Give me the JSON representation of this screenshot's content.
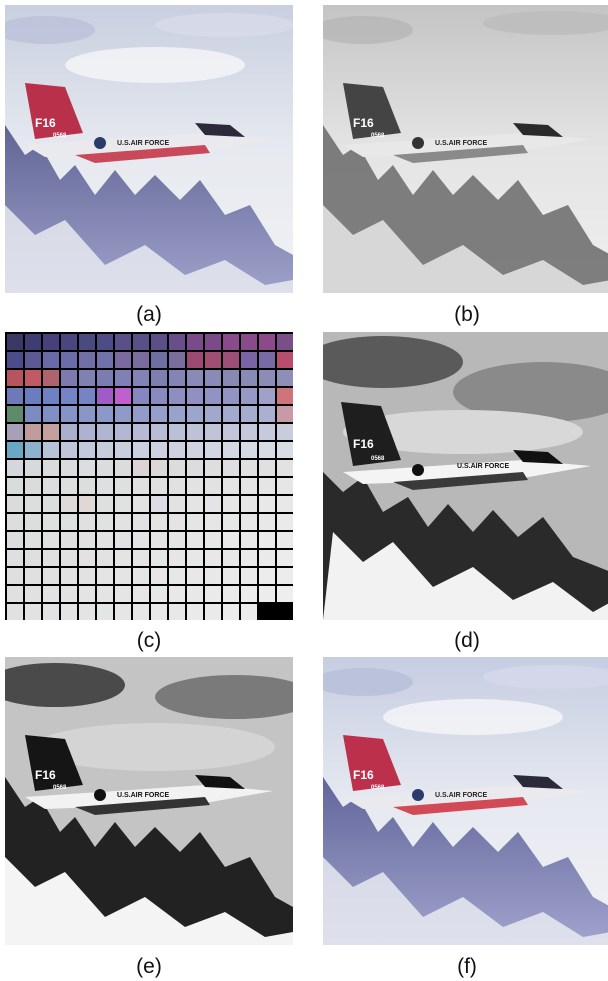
{
  "panels": [
    {
      "id": "a",
      "caption": "(a)",
      "tail_text": "F16",
      "serial_text": "0568",
      "fuselage_text": "U.S.AIR FORCE",
      "style": "color"
    },
    {
      "id": "b",
      "caption": "(b)",
      "tail_text": "F16",
      "serial_text": "0568",
      "fuselage_text": "U.S.AIR FORCE",
      "style": "gray"
    },
    {
      "id": "c",
      "caption": "(c)",
      "style": "palette"
    },
    {
      "id": "d",
      "caption": "(d)",
      "tail_text": "F16",
      "serial_text": "0568",
      "fuselage_text": "U.S.AIR FORCE",
      "style": "gray-contrast"
    },
    {
      "id": "e",
      "caption": "(e)",
      "tail_text": "F16",
      "serial_text": "0568",
      "fuselage_text": "U.S.AIR FORCE",
      "style": "gray-contrast"
    },
    {
      "id": "f",
      "caption": "(f)",
      "tail_text": "F16",
      "serial_text": "0568",
      "fuselage_text": "U.S.AIR FORCE",
      "style": "color"
    }
  ],
  "palette_grid": {
    "rows": 16,
    "cols": 16,
    "colors": [
      [
        "#3c3866",
        "#3e3c72",
        "#47407a",
        "#4a4680",
        "#4a4a7e",
        "#4e4c86",
        "#5a5088",
        "#5a4f86",
        "#5c4f88",
        "#6a4e8a",
        "#7a4a8a",
        "#7c4a88",
        "#8a4a8c",
        "#884c8a",
        "#8c4a8a",
        "#7a4e86"
      ],
      [
        "#4c4c8a",
        "#5c5a94",
        "#6a6aa6",
        "#6c6ca8",
        "#7070a6",
        "#7272aa",
        "#7a6a9e",
        "#7a6c9e",
        "#6e6ea0",
        "#7a6e9e",
        "#9c4a74",
        "#a04e72",
        "#9e4f78",
        "#7a64a4",
        "#7a6aa4",
        "#b84e6e"
      ],
      [
        "#b8545e",
        "#c05a64",
        "#b0626e",
        "#7c7aae",
        "#8080b2",
        "#7c7cb2",
        "#8080b4",
        "#8282b6",
        "#7e7eb0",
        "#8484b6",
        "#8a8ab8",
        "#8a8ab8",
        "#8888b4",
        "#8a8ab6",
        "#8c8cb6",
        "#8e8eb8"
      ],
      [
        "#6e7ab8",
        "#6c7cc0",
        "#7080c4",
        "#7484c6",
        "#7684c6",
        "#a05cc6",
        "#c060d0",
        "#8686c0",
        "#8a8ac0",
        "#8e8ec0",
        "#9090c2",
        "#9292c4",
        "#9494c4",
        "#9898c6",
        "#a0a0c8",
        "#d0747c"
      ],
      [
        "#5e8c6a",
        "#7a8cc2",
        "#8090c4",
        "#8494c6",
        "#8896c8",
        "#8c98c8",
        "#8e9ac8",
        "#929cca",
        "#94a0ca",
        "#98a2ca",
        "#9ca6cc",
        "#a0a8cc",
        "#a2aace",
        "#a6acd0",
        "#aab0d0",
        "#c89aa6"
      ],
      [
        "#a8a0b8",
        "#c09c9c",
        "#c4a0a0",
        "#a8b0ce",
        "#acb2d0",
        "#b0b6d2",
        "#b2b8d2",
        "#b6bad4",
        "#b8bcd4",
        "#bac0d6",
        "#bec2d6",
        "#c0c4d8",
        "#c2c6d8",
        "#c4c8da",
        "#c6cadc",
        "#c8ccdc"
      ],
      [
        "#6aa6c6",
        "#8cb2ce",
        "#b6c2d6",
        "#bec6d8",
        "#c2cadc",
        "#c6ccdc",
        "#c8cede",
        "#cad0de",
        "#ccd2e0",
        "#ced2e0",
        "#d0d4e0",
        "#d2d6e2",
        "#d4d8e2",
        "#d6dae4",
        "#d8dae4",
        "#d8dce4"
      ],
      [
        "#d4d8dc",
        "#d6dadc",
        "#d8dcdc",
        "#d8dcde",
        "#dadedf",
        "#dadcde",
        "#dcdcdc",
        "#dcd4d4",
        "#dcd8d6",
        "#dcdcdc",
        "#dcdcde",
        "#dedede",
        "#dedee0",
        "#e0e0e0",
        "#e0e0e2",
        "#e2e2e2"
      ],
      [
        "#d8dcdc",
        "#dadcdc",
        "#dadede",
        "#dcdedf",
        "#dcdede",
        "#dedfe0",
        "#dee0e0",
        "#e0e0e0",
        "#e0e0e2",
        "#e0e2e2",
        "#e2e2e2",
        "#e2e2e4",
        "#e4e4e4",
        "#e4e4e4",
        "#e4e6e6",
        "#e6e6e6"
      ],
      [
        "#dadcdc",
        "#dcdede",
        "#dcdede",
        "#dedada",
        "#e0d8d4",
        "#dee0e0",
        "#e0e2e2",
        "#e2e2e2",
        "#dcdce6",
        "#e2e2e4",
        "#e4e4e4",
        "#e4e4e6",
        "#e6e6e6",
        "#e6e6e6",
        "#e8e8e8",
        "#e8e8e8"
      ],
      [
        "#dcdede",
        "#dcdede",
        "#dedfe0",
        "#dee0e0",
        "#e0e0e0",
        "#e0e2e2",
        "#e2e2e2",
        "#e2e2e4",
        "#e4e4e4",
        "#e4e4e4",
        "#e4e6e6",
        "#e6e6e6",
        "#e6e8e8",
        "#e8e8e8",
        "#e8e8e8",
        "#eaeaea"
      ],
      [
        "#dcdede",
        "#dedfe0",
        "#dee0e0",
        "#e0e0e0",
        "#e0e2e2",
        "#e2e2e2",
        "#e2e2e4",
        "#e4e4e4",
        "#e4e4e4",
        "#e4e6e6",
        "#e6e6e6",
        "#e6e8e8",
        "#e8e8e8",
        "#e8e8e8",
        "#eaeaea",
        "#eaeaea"
      ],
      [
        "#dedfe0",
        "#dee0e0",
        "#e0e0e0",
        "#e0e2e2",
        "#e2e2e2",
        "#e2e2e4",
        "#e4e4e4",
        "#e4e4e4",
        "#e4e6e6",
        "#e6e6e6",
        "#e6e8e8",
        "#e8e8e8",
        "#e8e8e8",
        "#eaeaea",
        "#eaeaea",
        "#ececec"
      ],
      [
        "#dee0e0",
        "#e0e0e0",
        "#e0e2e2",
        "#e2e2e2",
        "#e2e2e4",
        "#e4e4e4",
        "#e4e4e4",
        "#e4e6e6",
        "#e6e6e6",
        "#e6e8e8",
        "#e8e8e8",
        "#e8e8e8",
        "#eaeaea",
        "#eaeaea",
        "#ececec",
        "#ececec"
      ],
      [
        "#e0e0e0",
        "#e0e2e2",
        "#e2e2e2",
        "#e2e2e4",
        "#e4e4e4",
        "#e4e4e4",
        "#e4e6e6",
        "#e6e6e6",
        "#e6e8e8",
        "#e8e8e8",
        "#e8e8e8",
        "#eaeaea",
        "#eaeaea",
        "#ececec",
        "#ececec",
        "#eeeeee"
      ],
      [
        "#e0e2e2",
        "#e2e2e2",
        "#e2e2e4",
        "#e4e4e4",
        "#e4e4e4",
        "#e4e6e6",
        "#e6e6e6",
        "#e6e8e8",
        "#e8e8e8",
        "#e8e8e8",
        "#eaeaea",
        "#eaeaea",
        "#ececec",
        "#ececec",
        "#000000",
        "#000000"
      ]
    ]
  }
}
